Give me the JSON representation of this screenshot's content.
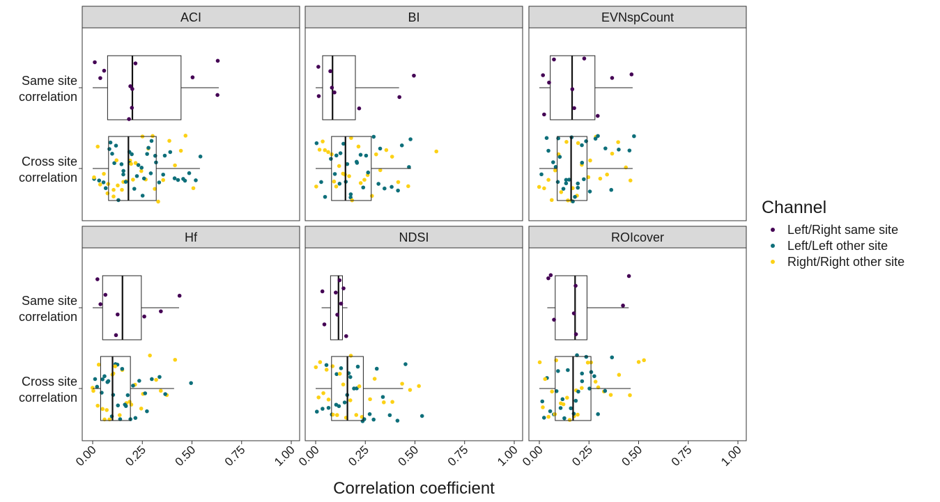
{
  "chart_data": {
    "type": "boxplot-jitter",
    "xlabel": "Correlation coefficient",
    "xlim": [
      0,
      1
    ],
    "x_ticks": [
      "0.00",
      "0.25",
      "0.50",
      "0.75",
      "1.00"
    ],
    "x_tick_values": [
      0,
      0.25,
      0.5,
      0.75,
      1.0
    ],
    "categories": [
      "Same site correlation",
      "Cross site correlation"
    ],
    "category_labels": [
      [
        "Same site",
        "correlation"
      ],
      [
        "Cross site",
        "correlation"
      ]
    ],
    "legend": {
      "title": "Channel",
      "position": "right",
      "entries": [
        {
          "name": "Left/Right same site",
          "color": "#440154"
        },
        {
          "name": "Left/Left other site",
          "color": "#0e6f7a"
        },
        {
          "name": "Right/Right other site",
          "color": "#fcd116"
        }
      ]
    },
    "panels": [
      {
        "name": "ACI",
        "same_box": {
          "min": 0.0,
          "q1": 0.075,
          "median": 0.2,
          "q3": 0.445,
          "max": 0.635
        },
        "same_points": [
          0.04,
          0.06,
          0.01,
          0.18,
          0.195,
          0.2,
          0.19,
          0.21,
          0.51,
          0.63,
          0.635
        ],
        "cross_box": {
          "min": 0.0,
          "q1": 0.08,
          "median": 0.18,
          "q3": 0.32,
          "max": 0.54
        },
        "cross_points": {
          "Left/Left other site": [
            0.01,
            0.03,
            0.05,
            0.07,
            0.08,
            0.09,
            0.1,
            0.11,
            0.12,
            0.13,
            0.14,
            0.15,
            0.16,
            0.17,
            0.18,
            0.19,
            0.2,
            0.21,
            0.22,
            0.23,
            0.24,
            0.25,
            0.26,
            0.27,
            0.28,
            0.29,
            0.3,
            0.31,
            0.32,
            0.33,
            0.35,
            0.37,
            0.39,
            0.41,
            0.43,
            0.45,
            0.47,
            0.49,
            0.52,
            0.54
          ],
          "Right/Right other site": [
            0.0,
            0.02,
            0.04,
            0.06,
            0.07,
            0.08,
            0.1,
            0.11,
            0.12,
            0.13,
            0.15,
            0.16,
            0.17,
            0.19,
            0.2,
            0.21,
            0.22,
            0.24,
            0.25,
            0.27,
            0.28,
            0.3,
            0.31,
            0.33,
            0.35,
            0.38,
            0.41,
            0.44,
            0.47,
            0.5
          ]
        }
      },
      {
        "name": "BI",
        "same_box": {
          "min": 0.0,
          "q1": 0.035,
          "median": 0.085,
          "q3": 0.2,
          "max": 0.42
        },
        "same_points": [
          0.01,
          0.02,
          0.07,
          0.08,
          0.1,
          0.22,
          0.42,
          0.5
        ],
        "cross_box": {
          "min": 0.0,
          "q1": 0.08,
          "median": 0.15,
          "q3": 0.28,
          "max": 0.48
        },
        "cross_points": {
          "Left/Left other site": [
            0.01,
            0.03,
            0.05,
            0.07,
            0.09,
            0.1,
            0.12,
            0.13,
            0.14,
            0.15,
            0.16,
            0.17,
            0.18,
            0.2,
            0.21,
            0.22,
            0.24,
            0.25,
            0.27,
            0.29,
            0.31,
            0.33,
            0.35,
            0.38,
            0.41,
            0.44,
            0.47,
            0.48
          ],
          "Right/Right other site": [
            0.0,
            0.02,
            0.03,
            0.05,
            0.06,
            0.08,
            0.09,
            0.11,
            0.12,
            0.14,
            0.15,
            0.17,
            0.18,
            0.19,
            0.21,
            0.22,
            0.24,
            0.26,
            0.28,
            0.3,
            0.32,
            0.35,
            0.38,
            0.42,
            0.47,
            0.61
          ]
        }
      },
      {
        "name": "EVNspCount",
        "same_box": {
          "min": 0.0,
          "q1": 0.055,
          "median": 0.165,
          "q3": 0.28,
          "max": 0.47
        },
        "same_points": [
          0.02,
          0.05,
          0.08,
          0.03,
          0.16,
          0.18,
          0.23,
          0.29,
          0.36,
          0.47
        ],
        "cross_box": {
          "min": 0.0,
          "q1": 0.09,
          "median": 0.16,
          "q3": 0.24,
          "max": 0.47
        },
        "cross_points": {
          "Left/Left other site": [
            0.01,
            0.03,
            0.05,
            0.07,
            0.08,
            0.09,
            0.1,
            0.11,
            0.12,
            0.13,
            0.14,
            0.15,
            0.16,
            0.17,
            0.18,
            0.19,
            0.2,
            0.21,
            0.22,
            0.23,
            0.24,
            0.26,
            0.28,
            0.3,
            0.33,
            0.36,
            0.4,
            0.45,
            0.48
          ],
          "Right/Right other site": [
            0.0,
            0.02,
            0.04,
            0.06,
            0.08,
            0.1,
            0.11,
            0.13,
            0.14,
            0.16,
            0.17,
            0.19,
            0.2,
            0.22,
            0.24,
            0.26,
            0.28,
            0.31,
            0.34,
            0.37,
            0.4,
            0.43,
            0.46
          ]
        }
      },
      {
        "name": "Hf",
        "same_box": {
          "min": 0.0,
          "q1": 0.05,
          "median": 0.15,
          "q3": 0.245,
          "max": 0.435
        },
        "same_points": [
          0.02,
          0.04,
          0.06,
          0.12,
          0.13,
          0.26,
          0.35,
          0.44
        ],
        "cross_box": {
          "min": 0.0,
          "q1": 0.04,
          "median": 0.1,
          "q3": 0.19,
          "max": 0.41
        },
        "cross_points": {
          "Left/Left other site": [
            0.01,
            0.02,
            0.04,
            0.05,
            0.06,
            0.07,
            0.08,
            0.09,
            0.1,
            0.11,
            0.12,
            0.13,
            0.14,
            0.15,
            0.16,
            0.17,
            0.18,
            0.19,
            0.2,
            0.22,
            0.24,
            0.26,
            0.28,
            0.3,
            0.33,
            0.36,
            0.49
          ],
          "Right/Right other site": [
            0.0,
            0.01,
            0.02,
            0.03,
            0.05,
            0.06,
            0.07,
            0.09,
            0.1,
            0.11,
            0.12,
            0.14,
            0.15,
            0.17,
            0.18,
            0.2,
            0.22,
            0.24,
            0.26,
            0.29,
            0.32,
            0.35,
            0.38,
            0.42
          ]
        }
      },
      {
        "name": "NDSI",
        "same_box": {
          "min": 0.03,
          "q1": 0.075,
          "median": 0.115,
          "q3": 0.135,
          "max": 0.16
        },
        "same_points": [
          0.03,
          0.05,
          0.1,
          0.11,
          0.12,
          0.13,
          0.14,
          0.16
        ],
        "cross_box": {
          "min": 0.0,
          "q1": 0.08,
          "median": 0.16,
          "q3": 0.24,
          "max": 0.44
        },
        "cross_points": {
          "Left/Left other site": [
            0.01,
            0.03,
            0.05,
            0.07,
            0.08,
            0.1,
            0.11,
            0.12,
            0.13,
            0.15,
            0.16,
            0.17,
            0.18,
            0.19,
            0.2,
            0.21,
            0.23,
            0.25,
            0.27,
            0.29,
            0.31,
            0.34,
            0.37,
            0.41,
            0.45,
            0.53
          ],
          "Right/Right other site": [
            0.0,
            0.01,
            0.02,
            0.04,
            0.05,
            0.06,
            0.08,
            0.09,
            0.11,
            0.12,
            0.14,
            0.15,
            0.17,
            0.18,
            0.2,
            0.22,
            0.24,
            0.27,
            0.3,
            0.34,
            0.38,
            0.43,
            0.48,
            0.52
          ]
        }
      },
      {
        "name": "ROIcover",
        "same_box": {
          "min": 0.04,
          "q1": 0.08,
          "median": 0.18,
          "q3": 0.24,
          "max": 0.45
        },
        "same_points": [
          0.04,
          0.06,
          0.08,
          0.17,
          0.18,
          0.19,
          0.42,
          0.45
        ],
        "cross_box": {
          "min": 0.0,
          "q1": 0.08,
          "median": 0.17,
          "q3": 0.26,
          "max": 0.46
        },
        "cross_points": {
          "Left/Left other site": [
            0.01,
            0.02,
            0.04,
            0.06,
            0.07,
            0.08,
            0.1,
            0.11,
            0.12,
            0.13,
            0.15,
            0.16,
            0.17,
            0.18,
            0.19,
            0.2,
            0.21,
            0.22,
            0.24,
            0.25,
            0.26,
            0.28,
            0.3,
            0.33,
            0.36
          ],
          "Right/Right other site": [
            0.0,
            0.02,
            0.03,
            0.05,
            0.06,
            0.08,
            0.09,
            0.11,
            0.12,
            0.14,
            0.15,
            0.17,
            0.18,
            0.2,
            0.22,
            0.24,
            0.26,
            0.28,
            0.3,
            0.33,
            0.36,
            0.4,
            0.45,
            0.5,
            0.53
          ]
        }
      }
    ]
  }
}
